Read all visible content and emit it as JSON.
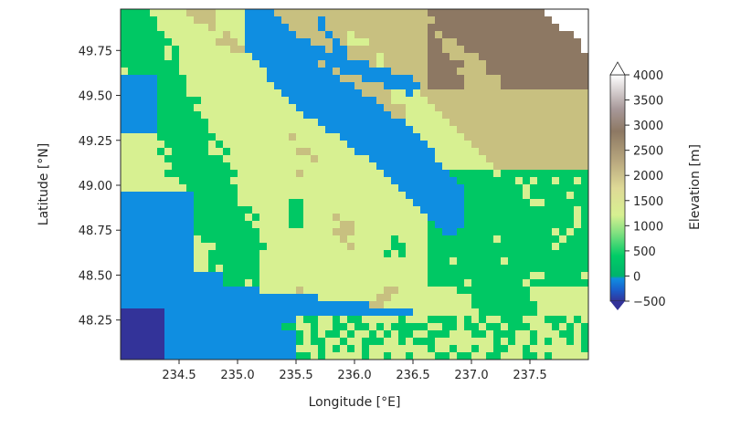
{
  "chart_data": {
    "type": "heatmap",
    "title": "",
    "xlabel": "Longitude [°E]",
    "ylabel": "Latitude [°N]",
    "xlim": [
      234.0,
      238.0
    ],
    "ylim": [
      48.03,
      49.98
    ],
    "xticks": [
      234.5,
      235.0,
      235.5,
      236.0,
      236.5,
      237.0,
      237.5
    ],
    "xtick_labels": [
      "234.5",
      "235.0",
      "235.5",
      "236.0",
      "236.5",
      "237.0",
      "237.5"
    ],
    "yticks": [
      48.25,
      48.5,
      48.75,
      49.0,
      49.25,
      49.5,
      49.75
    ],
    "ytick_labels": [
      "48.25",
      "48.50",
      "48.75",
      "49.00",
      "49.25",
      "49.50",
      "49.75"
    ],
    "colorbar": {
      "label": "Elevation [m]",
      "colormap": "terrain",
      "vmin": -500,
      "vmax": 4000,
      "extend": "max",
      "ticks": [
        -500,
        0,
        500,
        1000,
        1500,
        2000,
        2500,
        3000,
        3500,
        4000
      ],
      "tick_labels": [
        "−500",
        "0",
        "500",
        "1000",
        "1500",
        "2000",
        "2500",
        "3000",
        "3500",
        "4000"
      ]
    },
    "colors": {
      "deep_water": "#333399",
      "water": "#0f8ee1",
      "lowland": "#00c864",
      "upland": "#d7f091",
      "mountain": "#8d7863",
      "peak": "#ffffff"
    }
  }
}
